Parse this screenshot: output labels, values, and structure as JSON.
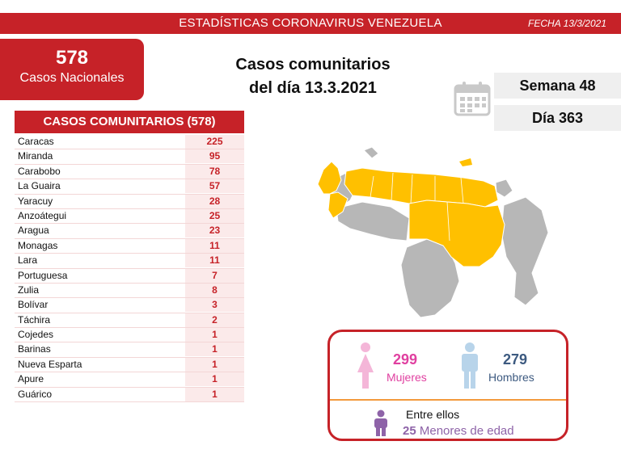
{
  "header": {
    "title": "ESTADÍSTICAS CORONAVIRUS VENEZUELA",
    "date": "FECHA 13/3/2021"
  },
  "national": {
    "count": "578",
    "label": "Casos Nacionales"
  },
  "heading": {
    "line1": "Casos comunitarios",
    "line2": "del día 13.3.2021"
  },
  "week": "Semana 48",
  "day": "Día 363",
  "table": {
    "title": "CASOS COMUNITARIOS (578)",
    "rows": [
      {
        "state": "Caracas",
        "count": "225"
      },
      {
        "state": "Miranda",
        "count": "95"
      },
      {
        "state": "Carabobo",
        "count": "78"
      },
      {
        "state": "La Guaira",
        "count": "57"
      },
      {
        "state": "Yaracuy",
        "count": "28"
      },
      {
        "state": "Anzoátegui",
        "count": "25"
      },
      {
        "state": "Aragua",
        "count": "23"
      },
      {
        "state": "Monagas",
        "count": "11"
      },
      {
        "state": "Lara",
        "count": "11"
      },
      {
        "state": "Portuguesa",
        "count": "7"
      },
      {
        "state": "Zulia",
        "count": "8"
      },
      {
        "state": "Bolívar",
        "count": "3"
      },
      {
        "state": "Táchira",
        "count": "2"
      },
      {
        "state": "Cojedes",
        "count": "1"
      },
      {
        "state": "Barinas",
        "count": "1"
      },
      {
        "state": "Nueva Esparta",
        "count": "1"
      },
      {
        "state": "Apure",
        "count": "1"
      },
      {
        "state": "Guárico",
        "count": "1"
      }
    ]
  },
  "gender": {
    "women_count": "299",
    "women_label": "Mujeres",
    "men_count": "279",
    "men_label": "Hombres",
    "among": "Entre ellos",
    "minors_count": "25",
    "minors_label": "Menores de edad"
  },
  "colors": {
    "accent": "#c62228",
    "map_affected": "#ffc000",
    "map_unaffected": "#b7b7b7",
    "women": "#e040a0",
    "men": "#3d5a80",
    "minors": "#8e63a8"
  }
}
